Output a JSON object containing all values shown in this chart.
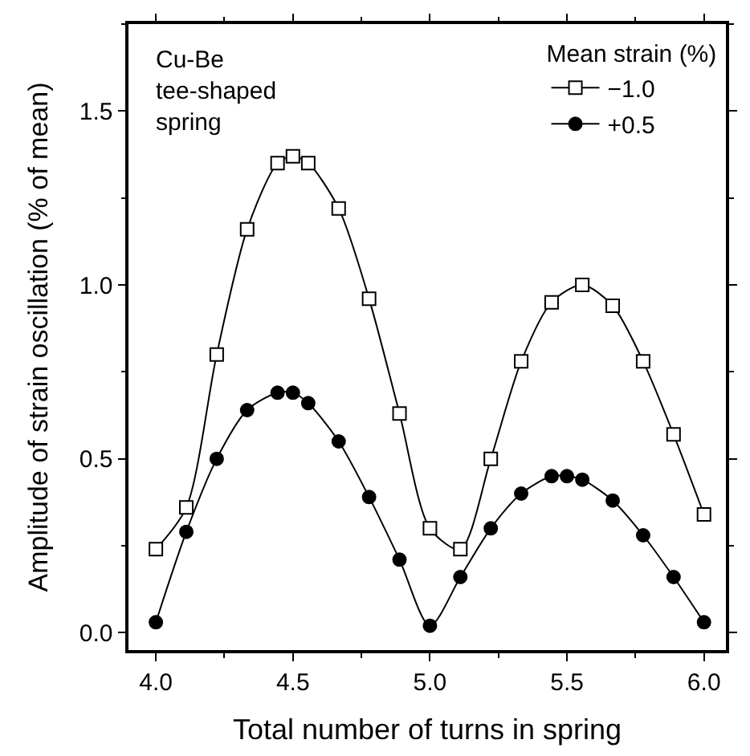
{
  "chart_data": {
    "type": "line",
    "xlabel": "Total number of turns in spring",
    "ylabel": "Amplitude of strain oscillation (% of mean)",
    "legend_title": "Mean strain (%)",
    "legend": "top right",
    "line_style": "solid",
    "xlim": [
      3.9,
      6.08
    ],
    "xticks": [
      {
        "value": 4,
        "label": "4.0"
      },
      4.5,
      {
        "value": 5,
        "label": "5.0"
      },
      5.5,
      {
        "value": 6,
        "label": "6.0"
      }
    ],
    "ylim": [
      -0.05,
      1.75
    ],
    "yticks": [
      {
        "value": 0,
        "label": "0.0"
      },
      0.5,
      {
        "value": 1,
        "label": "1.0"
      },
      1.5
    ],
    "x": [
      4.0,
      4.111,
      4.222,
      4.333,
      4.444,
      4.5,
      4.556,
      4.667,
      4.778,
      4.889,
      5.0,
      5.111,
      5.222,
      5.333,
      5.444,
      5.556,
      5.667,
      5.778,
      5.889,
      6.0
    ],
    "series": [
      {
        "name": "−1.0",
        "color": "#000000",
        "marker": "square",
        "values": [
          0.24,
          0.36,
          0.8,
          1.16,
          1.35,
          1.37,
          1.35,
          1.22,
          0.96,
          0.63,
          0.3,
          0.24,
          0.5,
          0.78,
          0.95,
          1.0,
          0.94,
          0.78,
          0.57,
          0.34
        ]
      },
      {
        "name": "+0.5",
        "color": "#000000",
        "marker": "circle",
        "x": [
          4.0,
          4.111,
          4.222,
          4.333,
          4.444,
          4.5,
          4.556,
          4.667,
          4.778,
          4.889,
          5.0,
          5.111,
          5.222,
          5.333,
          5.444,
          5.5,
          5.556,
          5.667,
          5.778,
          5.889,
          6.0
        ],
        "values": [
          0.03,
          0.29,
          0.5,
          0.64,
          0.69,
          0.69,
          0.66,
          0.55,
          0.39,
          0.21,
          0.02,
          0.16,
          0.3,
          0.4,
          0.45,
          0.45,
          0.44,
          0.38,
          0.28,
          0.16,
          0.03
        ]
      }
    ],
    "annotations": [
      "Cu-Be\ntee-shaped\nspring"
    ]
  }
}
